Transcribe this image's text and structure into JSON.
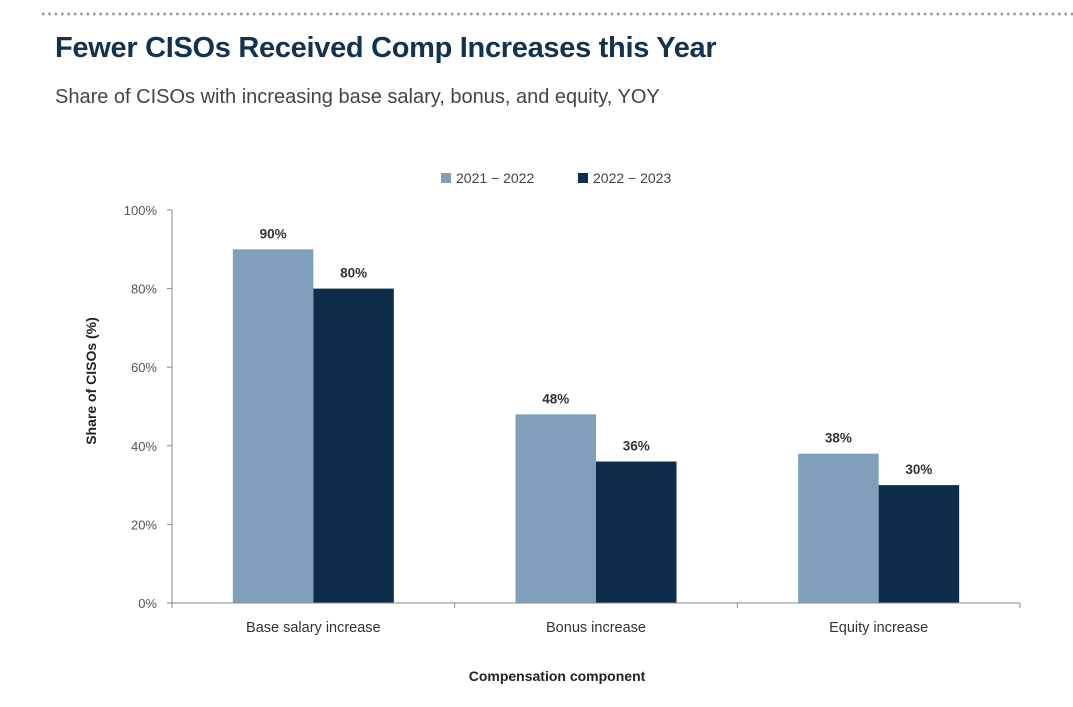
{
  "header": {
    "title": "Fewer CISOs Received Comp Increases this Year",
    "subtitle": "Share of CISOs with increasing base salary, bonus, and equity, YOY"
  },
  "colors": {
    "series_2021_2022": "#7f9fba",
    "series_2022_2023": "#0e2d4a",
    "title": "#13324e",
    "axis": "#888888"
  },
  "chart_data": {
    "type": "bar",
    "title": "Fewer CISOs Received Comp Increases this Year",
    "subtitle": "Share of CISOs with increasing base salary, bonus, and equity, YOY",
    "xlabel": "Compensation component",
    "ylabel": "Share of CISOs (%)",
    "categories": [
      "Base salary increase",
      "Bonus increase",
      "Equity increase"
    ],
    "series": [
      {
        "name": "2021 − 2022",
        "values": [
          90,
          48,
          38
        ],
        "labels": [
          "90%",
          "48%",
          "38%"
        ]
      },
      {
        "name": "2022 − 2023",
        "values": [
          80,
          36,
          30
        ],
        "labels": [
          "80%",
          "36%",
          "30%"
        ]
      }
    ],
    "ylim": [
      0,
      100
    ],
    "yticks": [
      0,
      20,
      40,
      60,
      80,
      100
    ],
    "ytick_labels": [
      "0%",
      "20%",
      "40%",
      "60%",
      "80%",
      "100%"
    ],
    "grid": false,
    "legend": "top-center"
  }
}
